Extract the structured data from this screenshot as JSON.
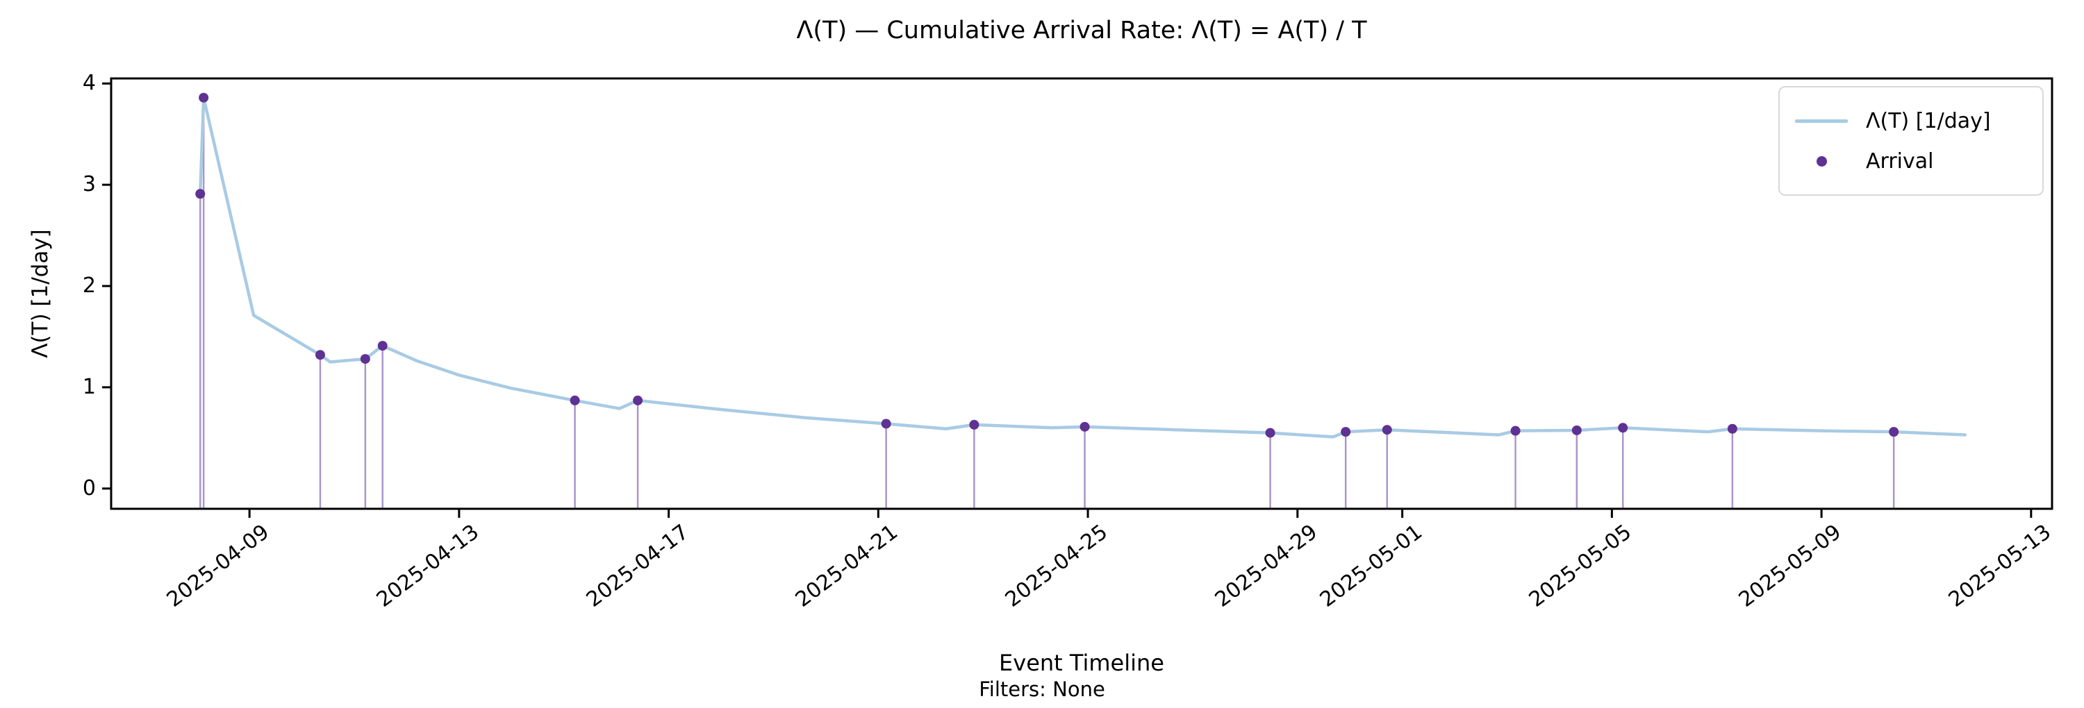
{
  "figure": {
    "title": "Λ(T) — Cumulative Arrival Rate: Λ(T) = A(T) / T",
    "ylabel": "Λ(T) [1/day]",
    "xlabel": "Event Timeline",
    "footnote": "Filters: None"
  },
  "legend": {
    "items": [
      {
        "label": "Λ(T) [1/day]",
        "marker": "line",
        "color": "#a8cbe4"
      },
      {
        "label": "Arrival",
        "marker": "dot",
        "color": "#5e3192"
      }
    ]
  },
  "chart_data": {
    "type": "line",
    "title": "Λ(T) — Cumulative Arrival Rate: Λ(T) = A(T) / T",
    "xlabel": "Event Timeline",
    "ylabel": "Λ(T) [1/day]",
    "grid": false,
    "legend_position": "upper right",
    "x_unit": "days since 2025-04-09 00:00",
    "xlim": [
      -2.64,
      34.4
    ],
    "ylim": [
      -0.2,
      4.05
    ],
    "y_ticks": [
      0,
      1,
      2,
      3,
      4
    ],
    "x_ticks": [
      {
        "t": 0,
        "label": "2025-04-09"
      },
      {
        "t": 4,
        "label": "2025-04-13"
      },
      {
        "t": 8,
        "label": "2025-04-17"
      },
      {
        "t": 12,
        "label": "2025-04-21"
      },
      {
        "t": 16,
        "label": "2025-04-25"
      },
      {
        "t": 20,
        "label": "2025-04-29"
      },
      {
        "t": 22,
        "label": "2025-05-01"
      },
      {
        "t": 26,
        "label": "2025-05-05"
      },
      {
        "t": 30,
        "label": "2025-05-09"
      },
      {
        "t": 34,
        "label": "2025-05-13"
      }
    ],
    "series": [
      {
        "name": "Λ(T) [1/day]",
        "color": "#a8cbe4",
        "line_width": 4.5,
        "points": [
          [
            -0.94,
            2.91
          ],
          [
            -0.875,
            3.86
          ],
          [
            0.08,
            1.71
          ],
          [
            1.35,
            1.32
          ],
          [
            1.54,
            1.25
          ],
          [
            2.21,
            1.28
          ],
          [
            2.54,
            1.41
          ],
          [
            3.2,
            1.26
          ],
          [
            4.0,
            1.12
          ],
          [
            5.0,
            0.99
          ],
          [
            6.21,
            0.87
          ],
          [
            7.06,
            0.79
          ],
          [
            7.41,
            0.87
          ],
          [
            9.0,
            0.78
          ],
          [
            10.6,
            0.7
          ],
          [
            12.15,
            0.64
          ],
          [
            13.29,
            0.59
          ],
          [
            13.83,
            0.63
          ],
          [
            15.3,
            0.6
          ],
          [
            15.94,
            0.61
          ],
          [
            17.7,
            0.58
          ],
          [
            19.48,
            0.55
          ],
          [
            20.68,
            0.51
          ],
          [
            20.92,
            0.56
          ],
          [
            21.71,
            0.58
          ],
          [
            23.84,
            0.53
          ],
          [
            24.16,
            0.57
          ],
          [
            25.33,
            0.575
          ],
          [
            26.21,
            0.6
          ],
          [
            27.84,
            0.56
          ],
          [
            28.3,
            0.59
          ],
          [
            30.0,
            0.57
          ],
          [
            31.38,
            0.56
          ],
          [
            32.74,
            0.53
          ]
        ]
      }
    ],
    "arrivals": {
      "name": "Arrival",
      "dot_color": "#5e3192",
      "stem_color": "rgba(104,62,160,0.55)",
      "events": [
        {
          "t": -0.94,
          "date": "2025-04-08 01:30",
          "lambda": 2.91
        },
        {
          "t": -0.875,
          "date": "2025-04-08 03:00",
          "lambda": 3.86
        },
        {
          "t": 1.35,
          "date": "2025-04-10 08:30",
          "lambda": 1.32
        },
        {
          "t": 2.21,
          "date": "2025-04-11 05:00",
          "lambda": 1.28
        },
        {
          "t": 2.54,
          "date": "2025-04-11 13:00",
          "lambda": 1.41
        },
        {
          "t": 6.21,
          "date": "2025-04-15 05:00",
          "lambda": 0.87
        },
        {
          "t": 7.41,
          "date": "2025-04-16 10:00",
          "lambda": 0.87
        },
        {
          "t": 12.15,
          "date": "2025-04-21 03:30",
          "lambda": 0.64
        },
        {
          "t": 13.83,
          "date": "2025-04-22 20:00",
          "lambda": 0.63
        },
        {
          "t": 15.94,
          "date": "2025-04-24 22:30",
          "lambda": 0.61
        },
        {
          "t": 19.48,
          "date": "2025-04-28 11:30",
          "lambda": 0.55
        },
        {
          "t": 20.92,
          "date": "2025-04-29 22:00",
          "lambda": 0.56
        },
        {
          "t": 21.71,
          "date": "2025-04-30 17:00",
          "lambda": 0.58
        },
        {
          "t": 24.16,
          "date": "2025-05-03 04:00",
          "lambda": 0.57
        },
        {
          "t": 25.33,
          "date": "2025-05-04 08:00",
          "lambda": 0.575
        },
        {
          "t": 26.21,
          "date": "2025-05-05 05:00",
          "lambda": 0.6
        },
        {
          "t": 28.3,
          "date": "2025-05-07 07:00",
          "lambda": 0.59
        },
        {
          "t": 31.38,
          "date": "2025-05-10 09:00",
          "lambda": 0.56
        }
      ]
    }
  }
}
